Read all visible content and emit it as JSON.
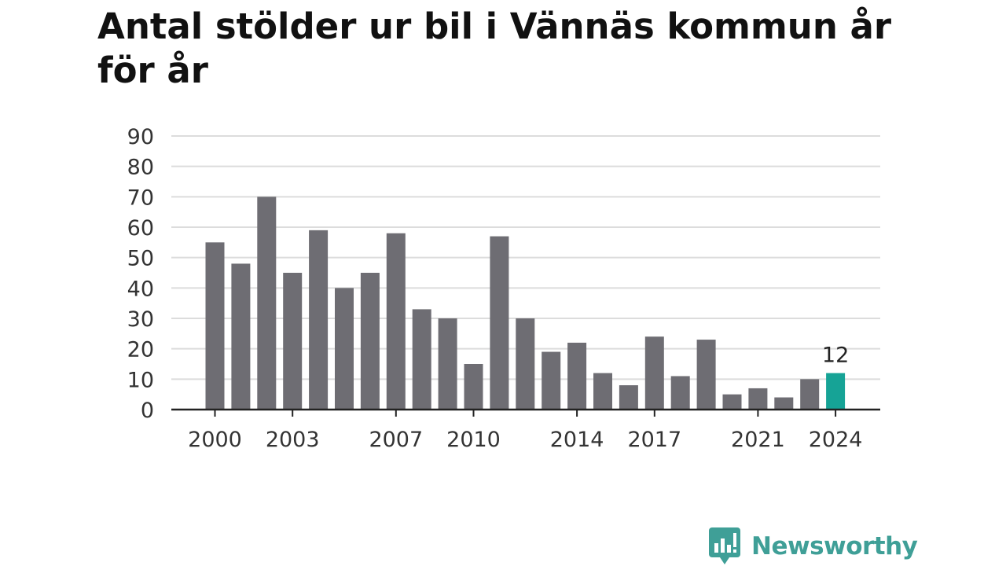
{
  "title": "Antal stölder ur bil i Vännäs kommun år för år",
  "brand": {
    "name": "Newsworthy",
    "color": "#3f9f97"
  },
  "colors": {
    "bar": "#6e6d73",
    "highlight": "#16a396",
    "grid": "#dcdcdc",
    "axis": "#222222"
  },
  "chart_data": {
    "type": "bar",
    "title": "Antal stölder ur bil i Vännäs kommun år för år",
    "xlabel": "",
    "ylabel": "",
    "categories": [
      "2000",
      "2001",
      "2002",
      "2003",
      "2004",
      "2005",
      "2006",
      "2007",
      "2008",
      "2009",
      "2010",
      "2011",
      "2012",
      "2013",
      "2014",
      "2015",
      "2016",
      "2017",
      "2018",
      "2019",
      "2020",
      "2021",
      "2022",
      "2023",
      "2024"
    ],
    "values": [
      55,
      48,
      70,
      45,
      59,
      40,
      45,
      58,
      33,
      30,
      15,
      57,
      30,
      19,
      22,
      12,
      8,
      24,
      11,
      23,
      5,
      7,
      4,
      10,
      12
    ],
    "x_tick_labels": [
      "2000",
      "2003",
      "2007",
      "2010",
      "2014",
      "2017",
      "2021",
      "2024"
    ],
    "y_ticks": [
      0,
      10,
      20,
      30,
      40,
      50,
      60,
      70,
      80,
      90
    ],
    "ylim": [
      0,
      90
    ],
    "highlight_category": "2024",
    "highlight_label": "12",
    "grid": true,
    "legend": "none"
  }
}
